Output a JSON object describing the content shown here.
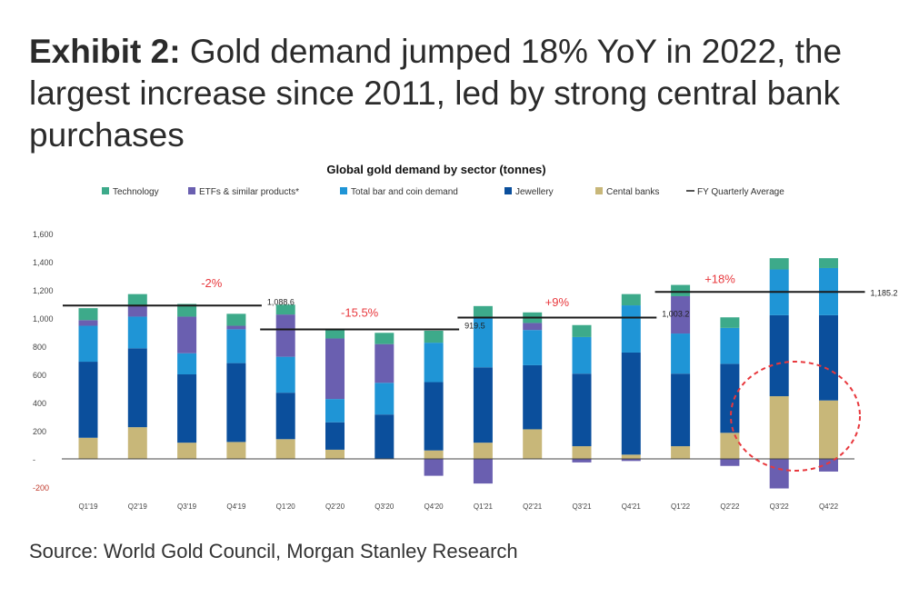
{
  "exhibit": {
    "label": "Exhibit 2:",
    "title": "Gold demand jumped 18% YoY in 2022, the largest increase since 2011, led by strong central bank purchases"
  },
  "source": "Source: World Gold Council, Morgan Stanley Research",
  "colors": {
    "technology": "#3daa8a",
    "etfs": "#6a5fb0",
    "bar_coin": "#1f95d6",
    "jewellery": "#0b4f9c",
    "central_banks": "#c8b779",
    "avg_line": "#1a1a1a",
    "annotation": "#e8383d"
  },
  "chart_data": {
    "type": "bar",
    "stacked": true,
    "title": "Global gold demand by sector (tonnes)",
    "categories": [
      "Q1'19",
      "Q2'19",
      "Q3'19",
      "Q4'19",
      "Q1'20",
      "Q2'20",
      "Q3'20",
      "Q4'20",
      "Q1'21",
      "Q2'21",
      "Q3'21",
      "Q4'21",
      "Q1'22",
      "Q2'22",
      "Q3'22",
      "Q4'22"
    ],
    "ylim": [
      -200,
      1600
    ],
    "yticks": [
      -200,
      0,
      200,
      400,
      600,
      800,
      1000,
      1200,
      1400,
      1600
    ],
    "ytick_labels": [
      "-200",
      "-",
      "200",
      "400",
      "600",
      "800",
      "1,000",
      "1,200",
      "1,400",
      "1,600"
    ],
    "legend_position": "top",
    "series": [
      {
        "name": "Central banks",
        "color_key": "central_banks",
        "values": [
          150,
          225,
          115,
          120,
          140,
          65,
          0,
          60,
          115,
          210,
          90,
          30,
          90,
          185,
          445,
          415
        ]
      },
      {
        "name": "Jewellery",
        "color_key": "jewellery",
        "values": [
          540,
          560,
          485,
          560,
          330,
          195,
          315,
          485,
          535,
          455,
          515,
          725,
          515,
          490,
          575,
          605
        ]
      },
      {
        "name": "Total bar and coin demand",
        "color_key": "bar_coin",
        "values": [
          255,
          225,
          150,
          240,
          255,
          165,
          225,
          280,
          355,
          250,
          260,
          335,
          285,
          255,
          325,
          335
        ]
      },
      {
        "name": "ETFs & similar products*",
        "color_key": "etfs",
        "values": [
          40,
          75,
          260,
          25,
          300,
          430,
          275,
          -120,
          -175,
          50,
          -25,
          -15,
          265,
          -50,
          -210,
          -90
        ]
      },
      {
        "name": "Technology",
        "color_key": "technology",
        "values": [
          85,
          85,
          90,
          85,
          70,
          65,
          80,
          85,
          80,
          75,
          85,
          80,
          80,
          75,
          80,
          70
        ]
      }
    ],
    "fy_quarterly_average": [
      {
        "name": "FY Quarterly Average",
        "from": 0,
        "to": 3,
        "value": 1088.6,
        "label": "1,088.6"
      },
      {
        "name": "FY Quarterly Average",
        "from": 4,
        "to": 7,
        "value": 919.5,
        "label": "919.5"
      },
      {
        "name": "FY Quarterly Average",
        "from": 8,
        "to": 11,
        "value": 1003.2,
        "label": "1,003.2"
      },
      {
        "name": "FY Quarterly Average",
        "from": 12,
        "to": 15,
        "value": 1185.2,
        "label": "1,185.2"
      }
    ],
    "annotations": [
      {
        "text": "-2%",
        "x_index": 2.5,
        "y": 1220
      },
      {
        "text": "-15.5%",
        "x_index": 5.5,
        "y": 1010
      },
      {
        "text": "+9%",
        "x_index": 9.5,
        "y": 1085
      },
      {
        "text": "+18%",
        "x_index": 12.8,
        "y": 1250
      }
    ],
    "legend": [
      {
        "label": "Technology",
        "color_key": "technology",
        "kind": "swatch"
      },
      {
        "label": "ETFs & similar products*",
        "color_key": "etfs",
        "kind": "swatch"
      },
      {
        "label": "Total bar and coin demand",
        "color_key": "bar_coin",
        "kind": "swatch"
      },
      {
        "label": "Jewellery",
        "color_key": "jewellery",
        "kind": "swatch"
      },
      {
        "label": "Cental banks",
        "color_key": "central_banks",
        "kind": "swatch"
      },
      {
        "label": "FY Quarterly Average",
        "color_key": "avg_line",
        "kind": "line"
      }
    ]
  }
}
